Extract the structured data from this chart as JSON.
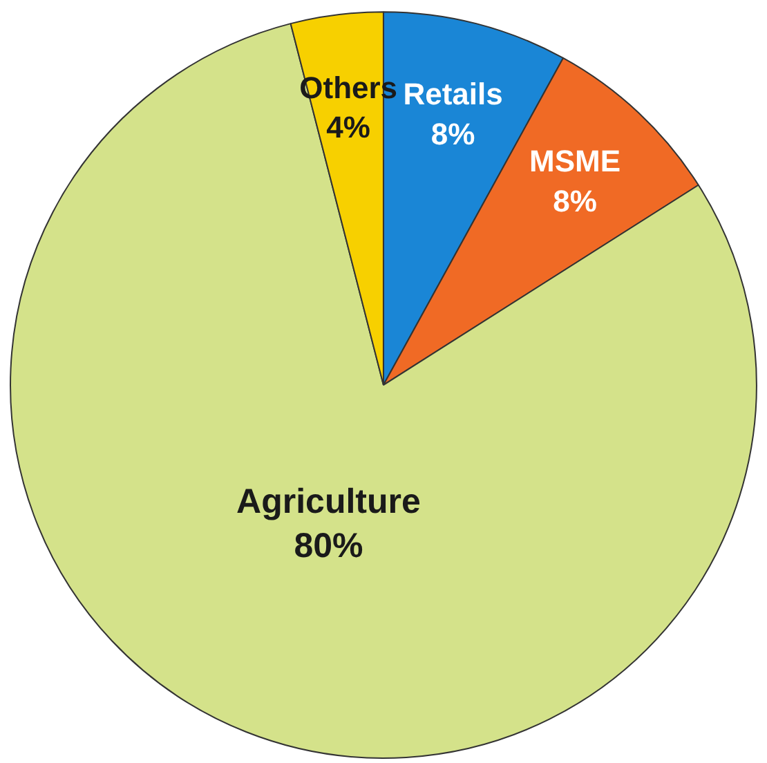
{
  "chart_data": {
    "type": "pie",
    "categories": [
      "Retails",
      "MSME",
      "Agriculture",
      "Others"
    ],
    "values": [
      8,
      8,
      80,
      4
    ],
    "colors": [
      "#1a86d6",
      "#f06a25",
      "#d4e28a",
      "#f7d000"
    ],
    "value_labels": [
      "8%",
      "8%",
      "80%",
      "4%"
    ]
  }
}
